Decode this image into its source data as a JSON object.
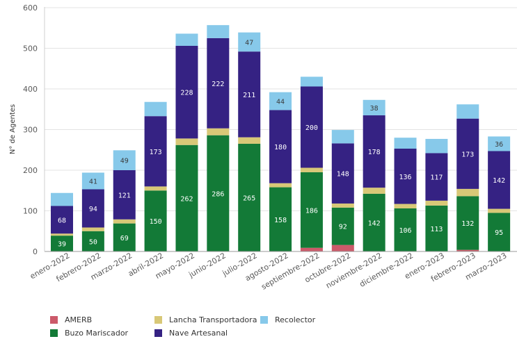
{
  "chart_data": {
    "type": "bar",
    "stacked": true,
    "ylabel": "N° de Agentes",
    "xlabel": "",
    "ylim": [
      0,
      600
    ],
    "yticks": [
      0,
      100,
      200,
      300,
      400,
      500,
      600
    ],
    "grid": true,
    "legend_position": "bottom",
    "categories": [
      "enero-2022",
      "febrero-2022",
      "marzo-2022",
      "abril-2022",
      "mayo-2022",
      "junio-2022",
      "julio-2022",
      "agosto-2022",
      "septiembre-2022",
      "octubre-2022",
      "noviembre-2022",
      "diciembre-2022",
      "enero-2023",
      "febrero-2023",
      "marzo-2023"
    ],
    "series": [
      {
        "name": "AMERB",
        "color": "#cc5a6a",
        "values": [
          0,
          0,
          0,
          0,
          0,
          0,
          0,
          0,
          9,
          16,
          0,
          0,
          0,
          4,
          0
        ],
        "labels": [
          "",
          "",
          "",
          "",
          "",
          "",
          "",
          "",
          "",
          "",
          "",
          "",
          "",
          "",
          ""
        ]
      },
      {
        "name": "Buzo Mariscador",
        "color": "#137a37",
        "values": [
          39,
          50,
          69,
          150,
          262,
          286,
          265,
          158,
          186,
          92,
          142,
          106,
          113,
          132,
          95
        ],
        "labels": [
          "39",
          "50",
          "69",
          "150",
          "262",
          "286",
          "265",
          "158",
          "186",
          "92",
          "142",
          "106",
          "113",
          "132",
          "95"
        ]
      },
      {
        "name": "Lancha Transportadora",
        "color": "#d8c877",
        "values": [
          5,
          9,
          10,
          10,
          16,
          17,
          16,
          10,
          11,
          10,
          15,
          11,
          12,
          18,
          10
        ],
        "labels": [
          "",
          "",
          "",
          "",
          "",
          "",
          "",
          "",
          "",
          "",
          "",
          "",
          "",
          "",
          ""
        ]
      },
      {
        "name": "Nave Artesanal",
        "color": "#352283",
        "values": [
          68,
          94,
          121,
          173,
          228,
          222,
          211,
          180,
          200,
          148,
          178,
          136,
          117,
          173,
          142
        ],
        "labels": [
          "68",
          "94",
          "121",
          "173",
          "228",
          "222",
          "211",
          "180",
          "200",
          "148",
          "178",
          "136",
          "117",
          "173",
          "142"
        ]
      },
      {
        "name": "Recolector",
        "color": "#87c9ea",
        "values": [
          32,
          41,
          49,
          35,
          30,
          32,
          47,
          44,
          24,
          33,
          38,
          27,
          35,
          35,
          36
        ],
        "labels": [
          "",
          "41",
          "49",
          "",
          "",
          "",
          "47",
          "44",
          "",
          "",
          "38",
          "",
          "",
          "",
          "36"
        ]
      }
    ]
  }
}
